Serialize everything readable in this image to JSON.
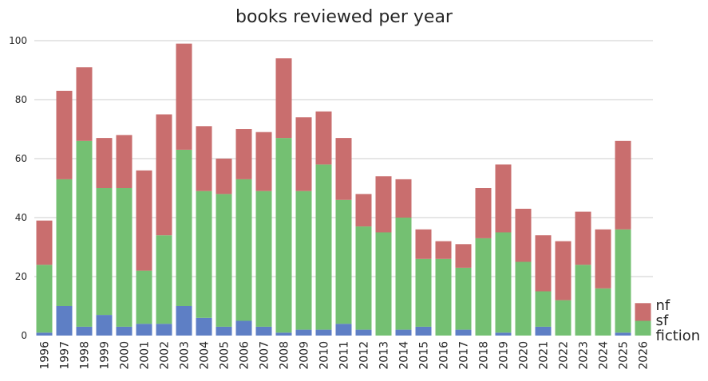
{
  "chart_data": {
    "type": "bar",
    "stacked": true,
    "title": "books reviewed per year",
    "xlabel": "",
    "ylabel": "",
    "ylim": [
      0,
      100
    ],
    "yticks": [
      0,
      20,
      40,
      60,
      80,
      100
    ],
    "grid": "horizontal",
    "legend": "end labels on right of last bar",
    "categories": [
      "1996",
      "1997",
      "1998",
      "1999",
      "2000",
      "2001",
      "2002",
      "2003",
      "2004",
      "2005",
      "2006",
      "2007",
      "2008",
      "2009",
      "2010",
      "2011",
      "2012",
      "2013",
      "2014",
      "2015",
      "2016",
      "2017",
      "2018",
      "2019",
      "2020",
      "2021",
      "2022",
      "2023",
      "2024",
      "2025",
      "2026"
    ],
    "series": [
      {
        "name": "fiction",
        "color": "#5e7fc5",
        "values": [
          1,
          10,
          3,
          7,
          3,
          4,
          4,
          10,
          6,
          3,
          5,
          3,
          1,
          2,
          2,
          4,
          2,
          0,
          2,
          3,
          0,
          2,
          0,
          1,
          0,
          3,
          0,
          0,
          0,
          1,
          0
        ]
      },
      {
        "name": "sf",
        "color": "#74c072",
        "values": [
          23,
          43,
          63,
          43,
          47,
          18,
          30,
          53,
          43,
          45,
          48,
          46,
          66,
          47,
          56,
          42,
          35,
          35,
          38,
          23,
          26,
          21,
          33,
          34,
          25,
          12,
          12,
          24,
          16,
          35,
          5
        ]
      },
      {
        "name": "nf",
        "color": "#c96e6e",
        "values": [
          15,
          30,
          25,
          17,
          18,
          34,
          41,
          36,
          22,
          12,
          17,
          20,
          27,
          25,
          18,
          21,
          11,
          19,
          13,
          10,
          6,
          8,
          17,
          23,
          18,
          19,
          20,
          18,
          20,
          30,
          6
        ]
      }
    ]
  }
}
